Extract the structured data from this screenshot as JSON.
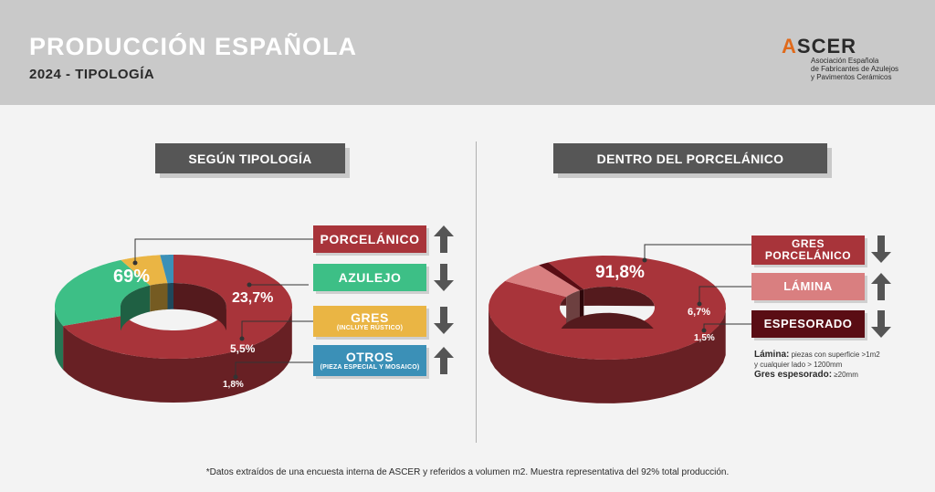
{
  "header": {
    "title": "PRODUCCIÓN ESPAÑOLA",
    "subtitle": "2024 - TIPOLOGÍA",
    "logo_text": "ASCER",
    "logo_lines": [
      "Asociación Española",
      "de Fabricantes de Azulejos",
      "y Pavimentos Cerámicos"
    ]
  },
  "left": {
    "heading": "SEGÚN TIPOLOGÍA",
    "legend": [
      {
        "label": "PORCELÁNICO",
        "sub": "",
        "trend": "up",
        "color": "#a8343a"
      },
      {
        "label": "AZULEJO",
        "sub": "",
        "trend": "down",
        "color": "#3dbf86"
      },
      {
        "label": "GRES",
        "sub": "(INCLUYE RÚSTICO)",
        "trend": "down",
        "color": "#eab544"
      },
      {
        "label": "OTROS",
        "sub": "(PIEZA ESPECIAL Y MOSAICO)",
        "trend": "up",
        "color": "#3b90b7"
      }
    ]
  },
  "right": {
    "heading": "DENTRO DEL PORCELÁNICO",
    "legend": [
      {
        "label": "GRES PORCELÁNICO",
        "trend": "down",
        "color": "#a8343a"
      },
      {
        "label": "LÁMINA",
        "trend": "up",
        "color": "#d97f80"
      },
      {
        "label": "ESPESORADO",
        "trend": "down",
        "color": "#5a0d14"
      }
    ],
    "notes": [
      {
        "term": "Lámina:",
        "text": " piezas con superficie >1m2"
      },
      {
        "term": "",
        "text": "y cualquier lado > 1200mm"
      },
      {
        "term": "Gres espesorado:",
        "text": " ≥20mm"
      }
    ]
  },
  "chart_data": [
    {
      "type": "pie",
      "title": "SEGÚN TIPOLOGÍA",
      "categories": [
        "PORCELÁNICO",
        "AZULEJO",
        "GRES",
        "OTROS"
      ],
      "values": [
        69,
        23.7,
        5.5,
        1.8
      ],
      "labels": [
        "69%",
        "23,7%",
        "5,5%",
        "1,8%"
      ],
      "colors": [
        "#a8343a",
        "#3dbf86",
        "#eab544",
        "#3b90b7"
      ]
    },
    {
      "type": "pie",
      "title": "DENTRO DEL PORCELÁNICO",
      "categories": [
        "GRES PORCELÁNICO",
        "LÁMINA",
        "ESPESORADO"
      ],
      "values": [
        91.8,
        6.7,
        1.5
      ],
      "labels": [
        "91,8%",
        "6,7%",
        "1,5%"
      ],
      "colors": [
        "#a8343a",
        "#d97f80",
        "#5a0d14"
      ]
    }
  ],
  "footer": "*Datos extraídos de una encuesta interna de ASCER y referidos a volumen m2. Muestra representativa del 92% total producción."
}
